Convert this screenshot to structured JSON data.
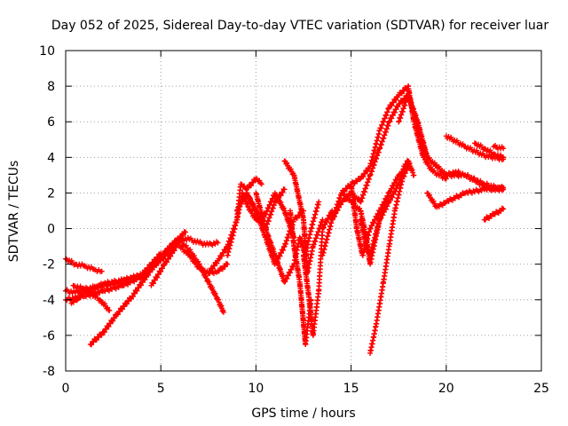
{
  "chart_data": {
    "type": "scatter",
    "title": "Day 052 of 2025, Sidereal Day-to-day VTEC variation (SDTVAR) for receiver luar",
    "xlabel": "GPS time / hours",
    "ylabel": "SDTVAR / TECUs",
    "xlim": [
      0,
      25
    ],
    "ylim": [
      -8,
      10
    ],
    "x_ticks": [
      0,
      5,
      10,
      15,
      20,
      25
    ],
    "y_ticks": [
      -8,
      -6,
      -4,
      -2,
      0,
      2,
      4,
      6,
      8,
      10
    ],
    "grid": true,
    "legend": "none",
    "marker": "+",
    "color": "#ff0000",
    "series": [
      {
        "x": [
          0.0,
          0.5,
          1.0,
          1.5,
          1.9
        ],
        "y": [
          -1.7,
          -2.0,
          -2.1,
          -2.3,
          -2.4
        ]
      },
      {
        "x": [
          0.0,
          0.5,
          1.0,
          2.0,
          3.0,
          4.0,
          5.0,
          5.5,
          6.0,
          6.5,
          7.0,
          7.5,
          8.0
        ],
        "y": [
          -3.5,
          -3.6,
          -3.4,
          -3.2,
          -3.0,
          -2.6,
          -1.8,
          -1.2,
          -0.6,
          -0.6,
          -0.8,
          -0.9,
          -0.8
        ]
      },
      {
        "x": [
          0.0,
          1.0,
          2.0,
          3.0,
          4.0,
          5.0,
          5.5,
          6.0,
          6.2
        ],
        "y": [
          -4.0,
          -3.8,
          -3.5,
          -3.2,
          -2.7,
          -1.6,
          -1.0,
          -0.5,
          -0.3
        ]
      },
      {
        "x": [
          0.3,
          1.0,
          2.0,
          3.0,
          4.0,
          4.5,
          5.0
        ],
        "y": [
          -4.2,
          -3.6,
          -3.1,
          -2.9,
          -2.6,
          -2.0,
          -1.4
        ]
      },
      {
        "x": [
          1.3,
          2.0,
          2.7,
          3.5,
          4.3,
          5.0,
          5.5,
          6.0,
          6.3
        ],
        "y": [
          -6.5,
          -5.8,
          -4.8,
          -3.8,
          -2.6,
          -1.6,
          -1.0,
          -0.5,
          -0.2
        ]
      },
      {
        "x": [
          0.4,
          1.0,
          1.8,
          2.3
        ],
        "y": [
          -3.2,
          -3.4,
          -4.0,
          -4.6
        ]
      },
      {
        "x": [
          4.5,
          5.2,
          6.0,
          6.5,
          7.0,
          7.5,
          8.0,
          8.3
        ],
        "y": [
          -3.2,
          -2.0,
          -0.7,
          -1.2,
          -2.0,
          -3.0,
          -4.0,
          -4.7
        ]
      },
      {
        "x": [
          6.0,
          6.5,
          7.0,
          7.5,
          8.0,
          8.5
        ],
        "y": [
          -1.0,
          -1.5,
          -2.2,
          -2.5,
          -2.4,
          -2.0
        ]
      },
      {
        "x": [
          7.5,
          8.0,
          8.5,
          9.0,
          9.2,
          9.5,
          10.0,
          10.3
        ],
        "y": [
          -2.5,
          -1.8,
          -1.0,
          0.5,
          2.5,
          2.2,
          2.8,
          2.5
        ]
      },
      {
        "x": [
          8.5,
          9.0,
          9.3,
          9.6,
          10.0,
          10.5,
          11.0,
          11.5,
          12.0
        ],
        "y": [
          -1.5,
          0.5,
          2.0,
          1.2,
          0.5,
          0.8,
          2.0,
          1.0,
          -0.5
        ]
      },
      {
        "x": [
          9.0,
          9.5,
          10.0,
          10.5,
          11.0,
          11.5
        ],
        "y": [
          1.0,
          2.0,
          1.0,
          0.0,
          1.5,
          2.2
        ]
      },
      {
        "x": [
          9.5,
          10.0,
          10.5,
          11.0,
          11.5,
          12.0,
          12.5
        ],
        "y": [
          2.0,
          1.0,
          -0.5,
          -2.0,
          -1.0,
          0.5,
          1.0
        ]
      },
      {
        "x": [
          10.0,
          10.5,
          11.0,
          11.5,
          12.0,
          12.3,
          12.6,
          12.9,
          13.3
        ],
        "y": [
          2.0,
          0.0,
          -1.5,
          -3.0,
          -2.0,
          -0.5,
          -1.5,
          0.0,
          1.5
        ]
      },
      {
        "x": [
          11.5,
          12.0,
          12.5,
          12.7,
          13.0,
          13.5
        ],
        "y": [
          3.8,
          3.0,
          0.5,
          -2.5,
          -1.0,
          0.5
        ]
      },
      {
        "x": [
          11.8,
          12.0,
          12.3,
          12.6,
          12.9
        ],
        "y": [
          1.0,
          -1.0,
          -3.0,
          -6.5,
          -4.0
        ]
      },
      {
        "x": [
          12.5,
          12.8,
          13.0,
          13.3,
          13.5,
          14.0
        ],
        "y": [
          -1.5,
          -4.0,
          -6.0,
          -3.5,
          0.0,
          1.0
        ]
      },
      {
        "x": [
          13.5,
          14.0,
          14.5,
          15.0,
          15.5,
          16.0,
          16.5,
          17.0,
          17.5,
          18.0,
          18.3,
          18.8,
          19.3,
          20.0
        ],
        "y": [
          -1.5,
          0.5,
          2.0,
          2.5,
          2.8,
          3.5,
          5.5,
          6.8,
          7.5,
          8.0,
          6.0,
          4.0,
          3.2,
          2.8
        ]
      },
      {
        "x": [
          14.0,
          14.5,
          15.0,
          15.5,
          16.0,
          16.5,
          17.0,
          17.5,
          18.0,
          18.5,
          19.0,
          19.5,
          20.0,
          21.0,
          22.0,
          23.0
        ],
        "y": [
          0.5,
          1.5,
          2.0,
          1.5,
          3.0,
          4.5,
          6.0,
          7.0,
          7.5,
          6.0,
          4.0,
          3.5,
          3.0,
          3.0,
          2.5,
          2.2
        ]
      },
      {
        "x": [
          14.5,
          15.0,
          15.5,
          15.8,
          16.0,
          16.5,
          17.0,
          17.5,
          17.8,
          18.0,
          18.3
        ],
        "y": [
          2.0,
          1.5,
          1.0,
          -0.5,
          -2.0,
          0.5,
          1.5,
          2.5,
          3.5,
          3.8,
          3.0
        ]
      },
      {
        "x": [
          15.0,
          15.3,
          15.6,
          16.0,
          16.5,
          17.0
        ],
        "y": [
          2.5,
          0.0,
          -1.5,
          0.0,
          1.0,
          2.0
        ]
      },
      {
        "x": [
          15.5,
          15.8,
          16.0,
          16.5,
          17.0,
          17.5,
          18.0
        ],
        "y": [
          0.5,
          -1.0,
          -1.5,
          0.5,
          2.0,
          3.0,
          3.5
        ]
      },
      {
        "x": [
          16.0,
          16.3,
          16.7,
          17.0,
          17.3,
          17.7,
          18.0
        ],
        "y": [
          -7.0,
          -5.5,
          -3.0,
          -1.0,
          1.0,
          2.8,
          3.5
        ]
      },
      {
        "x": [
          17.5,
          18.0,
          18.3,
          18.7,
          19.0,
          19.5,
          20.0,
          20.5,
          21.0,
          21.5,
          22.0,
          22.5,
          23.0
        ],
        "y": [
          6.0,
          7.5,
          6.5,
          5.0,
          4.0,
          3.5,
          3.0,
          3.2,
          3.0,
          2.7,
          2.4,
          2.2,
          2.2
        ]
      },
      {
        "x": [
          19.0,
          19.5,
          20.0,
          21.0,
          22.0,
          23.0
        ],
        "y": [
          2.0,
          1.2,
          1.5,
          2.0,
          2.2,
          2.3
        ]
      },
      {
        "x": [
          20.0,
          21.0,
          22.0,
          23.0
        ],
        "y": [
          5.2,
          4.6,
          4.1,
          3.9
        ]
      },
      {
        "x": [
          21.5,
          22.0,
          22.5,
          23.0
        ],
        "y": [
          4.8,
          4.5,
          4.2,
          4.0
        ]
      },
      {
        "x": [
          22.5,
          23.0
        ],
        "y": [
          4.6,
          4.5
        ]
      },
      {
        "x": [
          22.0,
          22.5,
          23.0
        ],
        "y": [
          0.5,
          0.8,
          1.1
        ]
      }
    ]
  }
}
